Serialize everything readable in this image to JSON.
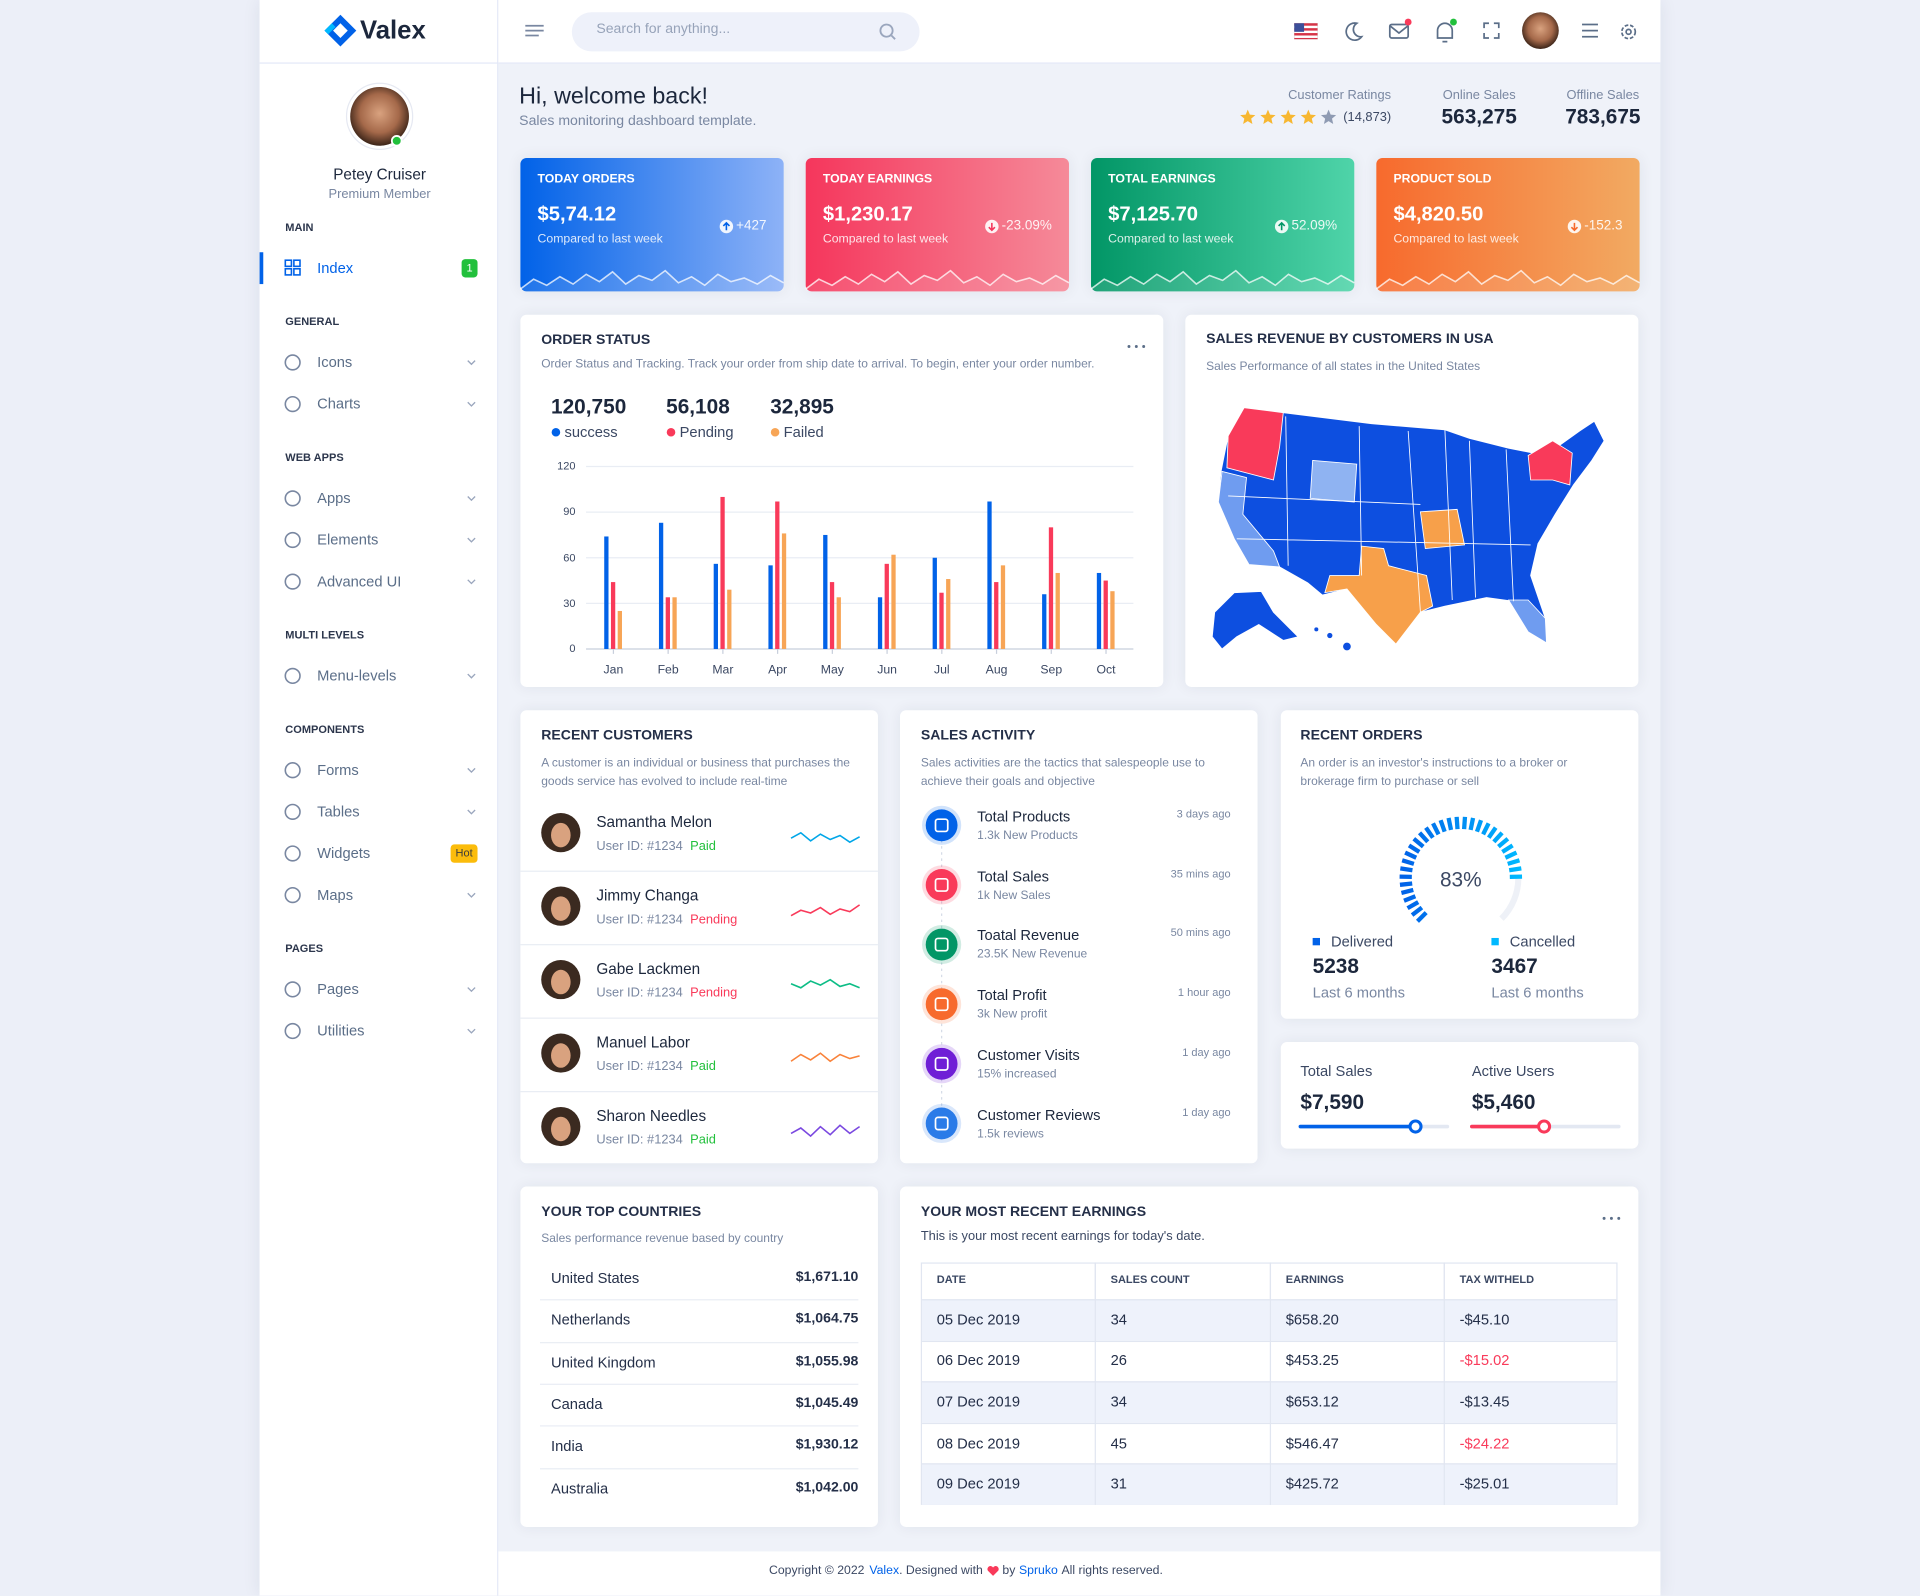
{
  "brand": "Valex",
  "search": {
    "placeholder": "Search for anything..."
  },
  "profile": {
    "name": "Petey Cruiser",
    "role": "Premium Member"
  },
  "sidebar": [
    {
      "heading": "MAIN",
      "items": [
        {
          "label": "Index",
          "badge": "1",
          "badge_color": "#22c03c"
        }
      ]
    },
    {
      "heading": "GENERAL",
      "items": [
        {
          "label": "Icons"
        },
        {
          "label": "Charts"
        }
      ]
    },
    {
      "heading": "WEB APPS",
      "items": [
        {
          "label": "Apps"
        },
        {
          "label": "Elements"
        },
        {
          "label": "Advanced UI"
        }
      ]
    },
    {
      "heading": "MULTI LEVELS",
      "items": [
        {
          "label": "Menu-levels"
        }
      ]
    },
    {
      "heading": "COMPONENTS",
      "items": [
        {
          "label": "Forms"
        },
        {
          "label": "Tables"
        },
        {
          "label": "Widgets",
          "badge": "Hot",
          "badge_color": "#fbbc0b"
        },
        {
          "label": "Maps"
        }
      ]
    },
    {
      "heading": "PAGES",
      "items": [
        {
          "label": "Pages"
        },
        {
          "label": "Utilities"
        }
      ]
    }
  ],
  "welcome": {
    "title": "Hi, welcome back!",
    "subtitle": "Sales monitoring dashboard template."
  },
  "header_stats": {
    "ratings": {
      "label": "Customer Ratings",
      "stars": 4,
      "max_stars": 5,
      "count": "(14,873)"
    },
    "online": {
      "label": "Online Sales",
      "value": "563,275"
    },
    "offline": {
      "label": "Offline Sales",
      "value": "783,675"
    }
  },
  "kpis": [
    {
      "title": "TODAY ORDERS",
      "value": "$5,74.12",
      "note": "Compared to last week",
      "change": "+427",
      "trend": "up",
      "colors": [
        "#0162e8",
        "#8db2f7"
      ]
    },
    {
      "title": "TODAY EARNINGS",
      "value": "$1,230.17",
      "note": "Compared to last week",
      "change": "-23.09%",
      "trend": "down",
      "colors": [
        "#f5365c",
        "#f58a99"
      ]
    },
    {
      "title": "TOTAL EARNINGS",
      "value": "$7,125.70",
      "note": "Compared to last week",
      "change": "52.09%",
      "trend": "up",
      "colors": [
        "#029666",
        "#4fd4a9"
      ]
    },
    {
      "title": "PRODUCT SOLD",
      "value": "$4,820.50",
      "note": "Compared to last week",
      "change": "-152.3",
      "trend": "down",
      "colors": [
        "#f76a2d",
        "#f2aa62"
      ]
    }
  ],
  "order_status": {
    "title": "ORDER STATUS",
    "subtitle": "Order Status and Tracking. Track your order from ship date to arrival. To begin, enter your order number.",
    "chart_data": {
      "type": "bar",
      "categories": [
        "Jan",
        "Feb",
        "Mar",
        "Apr",
        "May",
        "Jun",
        "Jul",
        "Aug",
        "Sep",
        "Oct"
      ],
      "series": [
        {
          "name": "success",
          "total": "120,750",
          "color": "#0162e8",
          "values": [
            74,
            83,
            56,
            55,
            75,
            34,
            60,
            97,
            36,
            50
          ]
        },
        {
          "name": "Pending",
          "total": "56,108",
          "color": "#f93a5a",
          "values": [
            44,
            34,
            100,
            97,
            44,
            56,
            37,
            44,
            80,
            45
          ]
        },
        {
          "name": "Failed",
          "total": "32,895",
          "color": "#f7a556",
          "values": [
            25,
            34,
            39,
            76,
            34,
            62,
            46,
            55,
            50,
            38
          ]
        }
      ],
      "ylim": [
        0,
        120
      ],
      "yticks": [
        0,
        30,
        60,
        90,
        120
      ],
      "grid": true
    }
  },
  "map": {
    "title": "SALES REVENUE BY CUSTOMERS IN USA",
    "subtitle": "Sales Performance of all states in the United States"
  },
  "recent_customers": {
    "title": "RECENT CUSTOMERS",
    "subtitle": "A customer is an individual or business that purchases the goods service has evolved to include real-time",
    "rows": [
      {
        "name": "Samantha Melon",
        "user_id": "User ID: #1234",
        "status": "Paid",
        "status_color": "#22c03c"
      },
      {
        "name": "Jimmy Changa",
        "user_id": "User ID: #1234",
        "status": "Pending",
        "status_color": "#f93a5a"
      },
      {
        "name": "Gabe Lackmen",
        "user_id": "User ID: #1234",
        "status": "Pending",
        "status_color": "#f93a5a"
      },
      {
        "name": "Manuel Labor",
        "user_id": "User ID: #1234",
        "status": "Paid",
        "status_color": "#22c03c"
      },
      {
        "name": "Sharon Needles",
        "user_id": "User ID: #1234",
        "status": "Paid",
        "status_color": "#22c03c"
      }
    ]
  },
  "sales_activity": {
    "title": "SALES ACTIVITY",
    "subtitle": "Sales activities are the tactics that salespeople use to achieve their goals and objective",
    "items": [
      {
        "title": "Total Products",
        "detail": "1.3k New Products",
        "time": "3 days ago",
        "color": "#0162e8"
      },
      {
        "title": "Total Sales",
        "detail": "1k New Sales",
        "time": "35 mins ago",
        "color": "#f93a5a"
      },
      {
        "title": "Toatal Revenue",
        "detail": "23.5K New Revenue",
        "time": "50 mins ago",
        "color": "#029666"
      },
      {
        "title": "Total Profit",
        "detail": "3k New profit",
        "time": "1 hour ago",
        "color": "#f76a2d"
      },
      {
        "title": "Customer Visits",
        "detail": "15% increased",
        "time": "1 day ago",
        "color": "#6f1ed6"
      },
      {
        "title": "Customer Reviews",
        "detail": "1.5k reviews",
        "time": "1 day ago",
        "color": "#2a7be8"
      }
    ]
  },
  "recent_orders": {
    "title": "RECENT ORDERS",
    "subtitle": "An order is an investor's instructions to a broker or brokerage firm to purchase or sell",
    "gauge": {
      "value": 83,
      "label": "83%",
      "range": [
        0,
        100
      ]
    },
    "legend": [
      {
        "name": "Delivered",
        "value": 5238,
        "note": "Last 6 months",
        "color": "#0162e8"
      },
      {
        "name": "Cancelled",
        "value": 3467,
        "note": "Last 6 months",
        "color": "#00b9ff"
      }
    ]
  },
  "totals": [
    {
      "label": "Total Sales",
      "value": "$7,590",
      "color": "#0162e8"
    },
    {
      "label": "Active Users",
      "value": "$5,460",
      "color": "#f93a5a"
    }
  ],
  "top_countries": {
    "title": "YOUR TOP COUNTRIES",
    "subtitle": "Sales performance revenue based by country",
    "rows": [
      [
        "United States",
        "$1,671.10"
      ],
      [
        "Netherlands",
        "$1,064.75"
      ],
      [
        "United Kingdom",
        "$1,055.98"
      ],
      [
        "Canada",
        "$1,045.49"
      ],
      [
        "India",
        "$1,930.12"
      ],
      [
        "Australia",
        "$1,042.00"
      ]
    ]
  },
  "earnings": {
    "title": "YOUR MOST RECENT EARNINGS",
    "subtitle": "This is your most recent earnings for today's date.",
    "columns": [
      "DATE",
      "SALES COUNT",
      "EARNINGS",
      "TAX WITHELD"
    ],
    "rows": [
      {
        "cells": [
          "05 Dec 2019",
          34,
          "$658.20",
          "-$45.10"
        ],
        "tax_alert": false
      },
      {
        "cells": [
          "06 Dec 2019",
          26,
          "$453.25",
          "-$15.02"
        ],
        "tax_alert": true
      },
      {
        "cells": [
          "07 Dec 2019",
          34,
          "$653.12",
          "-$13.45"
        ],
        "tax_alert": false
      },
      {
        "cells": [
          "08 Dec 2019",
          45,
          "$546.47",
          "-$24.22"
        ],
        "tax_alert": true
      },
      {
        "cells": [
          "09 Dec 2019",
          31,
          "$425.72",
          "-$25.01"
        ],
        "tax_alert": false
      }
    ]
  },
  "footer": {
    "copyright": "Copyright © 2022",
    "brand": "Valex",
    "designed": ". Designed with",
    "by": "by",
    "company": "Spruko",
    "rights": "All rights reserved."
  }
}
